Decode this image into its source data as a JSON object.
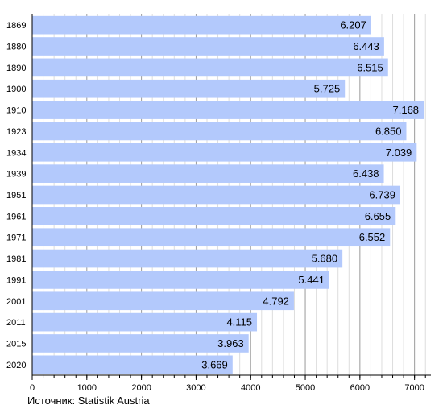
{
  "chart_data": {
    "type": "bar",
    "orientation": "horizontal",
    "categories": [
      "1869",
      "1880",
      "1890",
      "1900",
      "1910",
      "1923",
      "1934",
      "1939",
      "1951",
      "1961",
      "1971",
      "1981",
      "1991",
      "2001",
      "2011",
      "2015",
      "2020"
    ],
    "values": [
      6207,
      6443,
      6515,
      5725,
      7168,
      6850,
      7039,
      6438,
      6739,
      6655,
      6552,
      5680,
      5441,
      4792,
      4115,
      3963,
      3669
    ],
    "value_labels": [
      "6.207",
      "6.443",
      "6.515",
      "5.725",
      "7.168",
      "6.850",
      "7.039",
      "6.438",
      "6.739",
      "6.655",
      "6.552",
      "5.680",
      "5.441",
      "4.792",
      "4.115",
      "3.963",
      "3.669"
    ],
    "x_ticks": [
      "0",
      "1000",
      "2000",
      "3000",
      "4000",
      "5000",
      "6000",
      "7000"
    ],
    "xlim": [
      0,
      7300
    ],
    "grid": true,
    "bar_color": "#b3c9fc",
    "source": "Источник: Statistik Austria"
  }
}
